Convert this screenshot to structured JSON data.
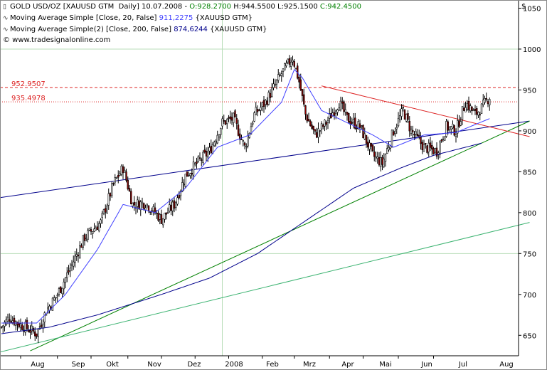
{
  "header": {
    "line1": {
      "instrument": "GOLD USD/OZ [XAUUSD GTM  Daily] 10.07.2008 - ",
      "open": "O:928.2700",
      "high": "H:944.5500",
      "low": "L:925.1500",
      "close": "C:942.4500",
      "open_color": "#008000",
      "hlc_color": "#000000",
      "close_color": "#008000"
    },
    "line2": {
      "name": "Moving Average Simple [Close, 20, False]",
      "value": "911,2275",
      "suffix": "{XAUUSD GTM}",
      "color": "#4040ff"
    },
    "line3": {
      "name": "Moving Average Simple(2) [Close, 200, False]",
      "value": "874,6244",
      "suffix": "{XAUUSD GTM}",
      "color": "#00008b"
    },
    "copyright": "© www.tradesignalonline.com"
  },
  "chart_data": {
    "type": "candlestick",
    "currency_label": "$",
    "ylim": [
      625,
      1060
    ],
    "y_ticks": [
      650,
      700,
      750,
      800,
      850,
      900,
      950,
      1000,
      1050
    ],
    "x_labels": [
      "Aug",
      "Sep",
      "Okt",
      "Nov",
      "Dez",
      "2008",
      "Feb",
      "Mrz",
      "Apr",
      "Mai",
      "Jun",
      "Jul",
      "Aug"
    ],
    "grid": true,
    "price_levels": [
      {
        "label": "952.9507",
        "value": 952.95,
        "color": "#dd2222"
      },
      {
        "label": "935.4978",
        "value": 935.5,
        "color": "#dd2222"
      }
    ],
    "close_anchors": [
      [
        0,
        660
      ],
      [
        5,
        672
      ],
      [
        10,
        665
      ],
      [
        15,
        660
      ],
      [
        22,
        652
      ],
      [
        28,
        680
      ],
      [
        35,
        700
      ],
      [
        42,
        728
      ],
      [
        52,
        770
      ],
      [
        62,
        788
      ],
      [
        70,
        835
      ],
      [
        76,
        855
      ],
      [
        82,
        810
      ],
      [
        90,
        812
      ],
      [
        96,
        800
      ],
      [
        100,
        792
      ],
      [
        108,
        810
      ],
      [
        115,
        845
      ],
      [
        122,
        860
      ],
      [
        130,
        875
      ],
      [
        138,
        910
      ],
      [
        145,
        915
      ],
      [
        152,
        880
      ],
      [
        158,
        920
      ],
      [
        165,
        935
      ],
      [
        175,
        970
      ],
      [
        182,
        990
      ],
      [
        186,
        960
      ],
      [
        190,
        920
      ],
      [
        196,
        895
      ],
      [
        203,
        910
      ],
      [
        211,
        935
      ],
      [
        216,
        915
      ],
      [
        224,
        905
      ],
      [
        232,
        870
      ],
      [
        238,
        860
      ],
      [
        245,
        900
      ],
      [
        251,
        925
      ],
      [
        256,
        900
      ],
      [
        264,
        880
      ],
      [
        272,
        875
      ],
      [
        278,
        905
      ],
      [
        284,
        900
      ],
      [
        290,
        935
      ],
      [
        296,
        920
      ],
      [
        300,
        928
      ],
      [
        305,
        942
      ]
    ],
    "moving_average_20": [
      [
        0,
        665
      ],
      [
        22,
        665
      ],
      [
        40,
        700
      ],
      [
        60,
        755
      ],
      [
        76,
        810
      ],
      [
        96,
        800
      ],
      [
        115,
        830
      ],
      [
        135,
        880
      ],
      [
        155,
        895
      ],
      [
        175,
        935
      ],
      [
        183,
        975
      ],
      [
        188,
        965
      ],
      [
        200,
        925
      ],
      [
        216,
        910
      ],
      [
        232,
        895
      ],
      [
        245,
        880
      ],
      [
        264,
        895
      ],
      [
        284,
        898
      ],
      [
        305,
        915
      ]
    ],
    "moving_average_200": [
      [
        0,
        652
      ],
      [
        30,
        660
      ],
      [
        60,
        675
      ],
      [
        100,
        700
      ],
      [
        130,
        720
      ],
      [
        160,
        750
      ],
      [
        190,
        790
      ],
      [
        220,
        830
      ],
      [
        250,
        855
      ],
      [
        270,
        870
      ],
      [
        290,
        880
      ],
      [
        300,
        885
      ]
    ],
    "trendlines": [
      {
        "type": "resistance",
        "from": [
          -2,
          818
        ],
        "to": [
          330,
          912
        ],
        "color": "#00008b"
      },
      {
        "type": "support",
        "from": [
          18,
          631
        ],
        "to": [
          330,
          912
        ],
        "color": "#008000"
      },
      {
        "type": "support",
        "from": [
          -2,
          629
        ],
        "to": [
          330,
          788
        ],
        "color": "#3cb371"
      },
      {
        "type": "falling-resistance",
        "from": [
          200,
          955
        ],
        "to": [
          330,
          893
        ],
        "color": "#dd2222"
      }
    ]
  }
}
